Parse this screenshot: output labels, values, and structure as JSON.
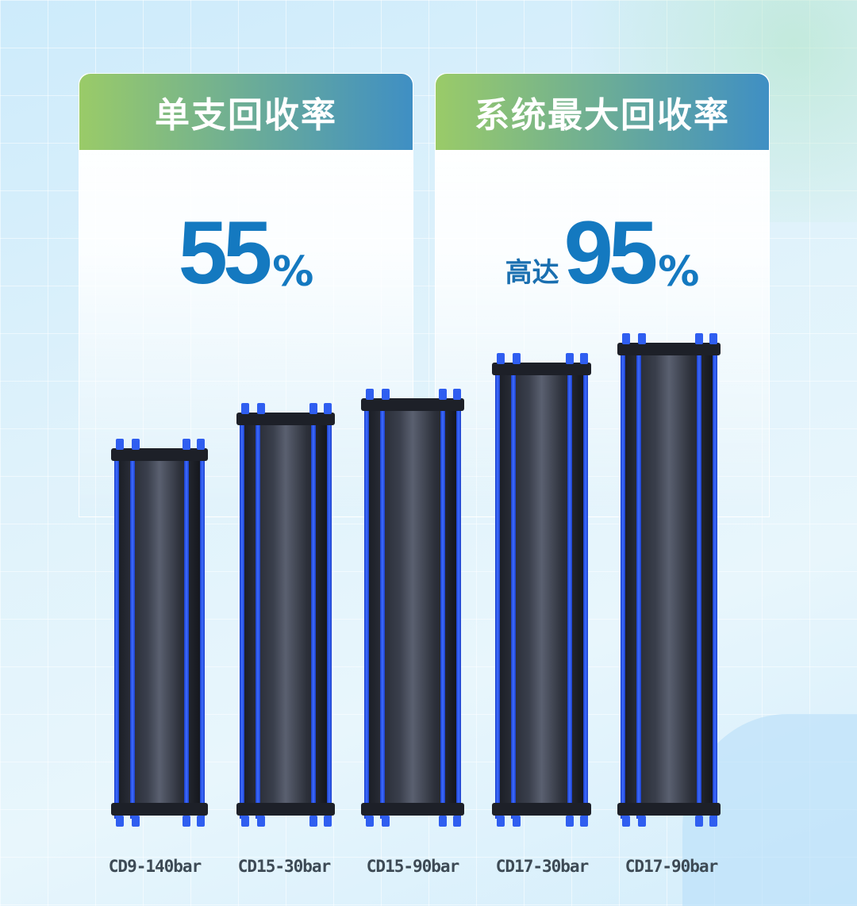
{
  "cards": [
    {
      "title": "单支回收率",
      "prefix": "",
      "value": "55",
      "unit": "%"
    },
    {
      "title": "系统最大回收率",
      "prefix": "高达",
      "value": "95",
      "unit": "%"
    }
  ],
  "products": [
    {
      "label": "CD9-140bar"
    },
    {
      "label": "CD15-30bar"
    },
    {
      "label": "CD15-90bar"
    },
    {
      "label": "CD17-30bar"
    },
    {
      "label": "CD17-90bar"
    }
  ],
  "colors": {
    "accent": "#1479c0",
    "header_start": "#9acb68",
    "header_end": "#3f8fc4",
    "rod": "#2f5ef0"
  }
}
